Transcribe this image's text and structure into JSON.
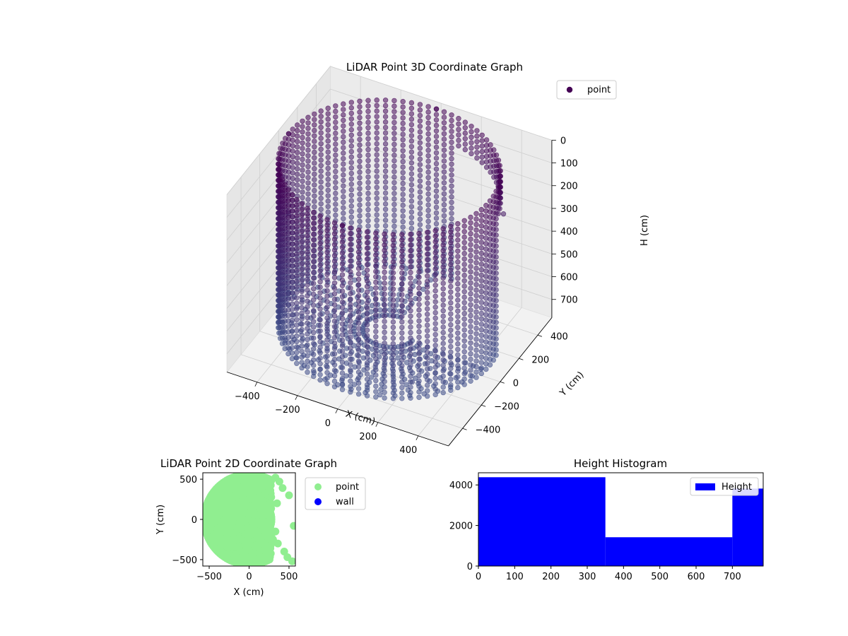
{
  "chart_data": [
    {
      "type": "scatter",
      "projection": "3d",
      "title": "LiDAR Point 3D Coordinate Graph",
      "xlabel": "X (cm)",
      "ylabel": "Y (cm)",
      "zlabel": "H (cm)",
      "xticks": [
        "−400",
        "−200",
        "0",
        "200",
        "400"
      ],
      "yticks": [
        "−400",
        "−200",
        "0",
        "200",
        "400"
      ],
      "zticks": [
        "0",
        "100",
        "200",
        "300",
        "400",
        "500",
        "600",
        "700"
      ],
      "zaxis_inverted": true,
      "xlim": [
        -550,
        550
      ],
      "ylim": [
        -550,
        550
      ],
      "zlim": [
        0,
        780
      ],
      "legend": {
        "entries": [
          "point"
        ],
        "position": "top-right"
      },
      "colormap": "viridis",
      "series": [
        {
          "name": "point",
          "shape": "cylindrical wall of points, radius ≈ 500 cm, heights 0–700 cm, missing in the +X/+Y sector",
          "sample_points": [
            {
              "x": -500,
              "y": 0,
              "h": 0
            },
            {
              "x": -500,
              "y": 0,
              "h": 350
            },
            {
              "x": -500,
              "y": 0,
              "h": 700
            },
            {
              "x": 0,
              "y": -500,
              "h": 0
            },
            {
              "x": 0,
              "y": -500,
              "h": 700
            },
            {
              "x": 0,
              "y": 500,
              "h": 0
            },
            {
              "x": 300,
              "y": -400,
              "h": 650
            },
            {
              "x": 450,
              "y": 250,
              "h": 200
            }
          ]
        }
      ],
      "grid": true,
      "pane_color": "#f2f2f2"
    },
    {
      "type": "scatter",
      "title": "LiDAR Point 2D Coordinate Graph",
      "xlabel": "X (cm)",
      "ylabel": "Y (cm)",
      "xticks": [
        "−500",
        "0",
        "500"
      ],
      "yticks": [
        "500",
        "0",
        "−500"
      ],
      "xlim": [
        -580,
        580
      ],
      "ylim": [
        -580,
        580
      ],
      "legend": {
        "entries": [
          "point",
          "wall"
        ],
        "position": "outside right",
        "colors": [
          "#90ee90",
          "#0000ff"
        ]
      },
      "series": [
        {
          "name": "point",
          "color": "#90ee90",
          "shape": "dense disc of points, radius ≈ 570 cm, mostly x < 280 cm"
        },
        {
          "name": "wall",
          "color": "#0000ff",
          "shape": "no visible points"
        }
      ]
    },
    {
      "type": "bar",
      "title": "Height Histogram",
      "xticks": [
        "0",
        "100",
        "200",
        "300",
        "400",
        "500",
        "600",
        "700"
      ],
      "yticks": [
        "0",
        "2000",
        "4000"
      ],
      "xlim": [
        0,
        785
      ],
      "ylim": [
        0,
        4600
      ],
      "legend": {
        "entries": [
          "Height"
        ],
        "position": "top-right"
      },
      "bars": [
        {
          "x0": 0,
          "x1": 350,
          "value": 4380
        },
        {
          "x0": 350,
          "x1": 700,
          "value": 1420
        },
        {
          "x0": 700,
          "x1": 785,
          "value": 3820
        }
      ],
      "color": "#0000ff"
    }
  ]
}
